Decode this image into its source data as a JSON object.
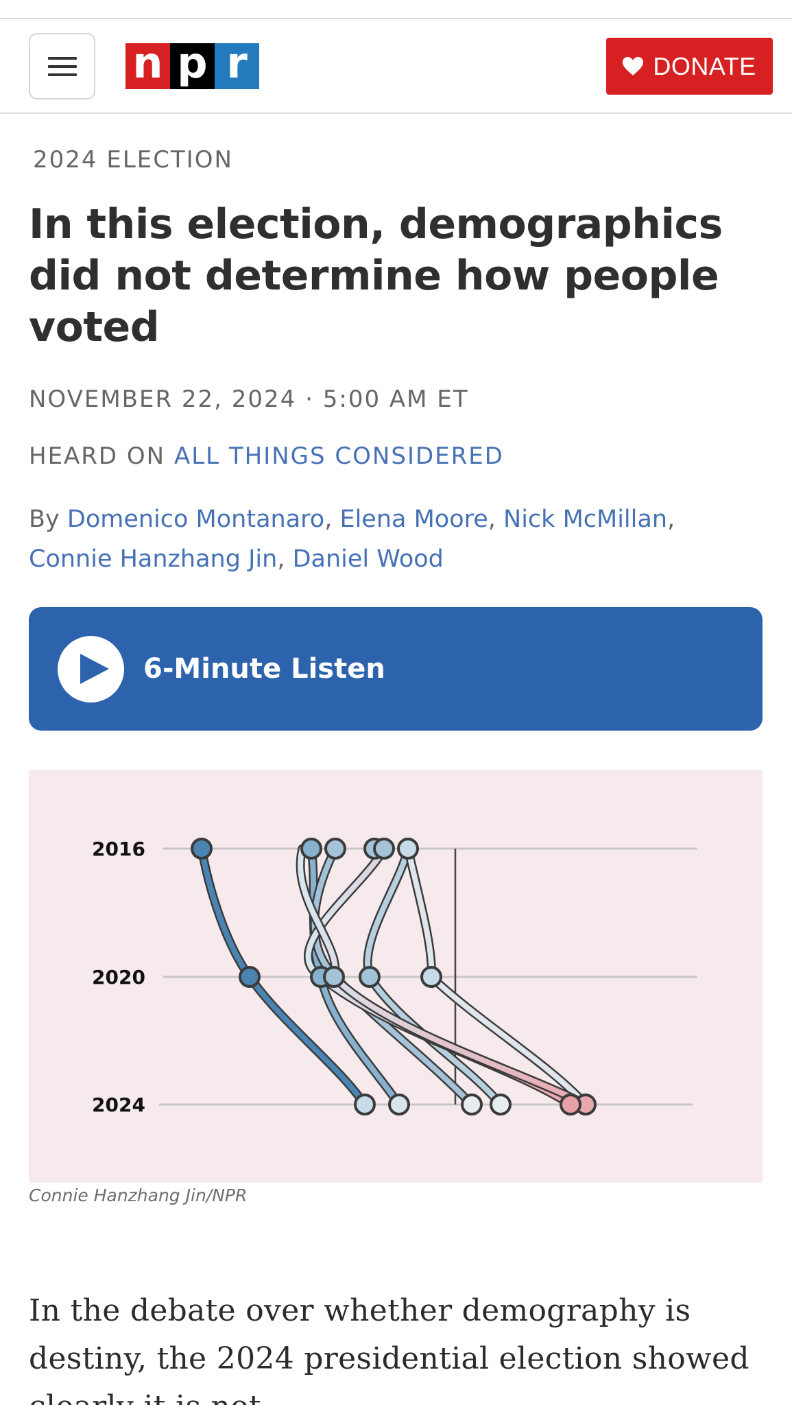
{
  "header": {
    "menu_icon": "hamburger-menu-icon",
    "logo_letters": [
      "n",
      "p",
      "r"
    ],
    "logo_colors": [
      "#d62021",
      "#000000",
      "#237bbd"
    ],
    "donate_label": "DONATE",
    "donate_icon": "heart-icon",
    "donate_color": "#d62021"
  },
  "article": {
    "kicker": "2024 ELECTION",
    "headline": "In this election, demographics did not determine how people voted",
    "dateline": "NOVEMBER 22, 2024 · 5:00 AM ET",
    "heard_on_prefix": "HEARD ON",
    "heard_on_show": "ALL THINGS CONSIDERED",
    "byline_prefix": "By",
    "authors": [
      "Domenico Montanaro",
      "Elena Moore",
      "Nick McMillan",
      "Connie Hanzhang Jin",
      "Daniel Wood"
    ],
    "listen_label": "6-Minute Listen",
    "listen_icon": "play-icon",
    "listen_color": "#2d63ad",
    "image_credit": "Connie Hanzhang Jin/NPR",
    "body_paragraph": "In the debate over whether demography is destiny, the 2024 presidential election showed clearly it is not."
  },
  "figure": {
    "background": "#f6eaec",
    "years": [
      "2016",
      "2020",
      "2024"
    ]
  }
}
